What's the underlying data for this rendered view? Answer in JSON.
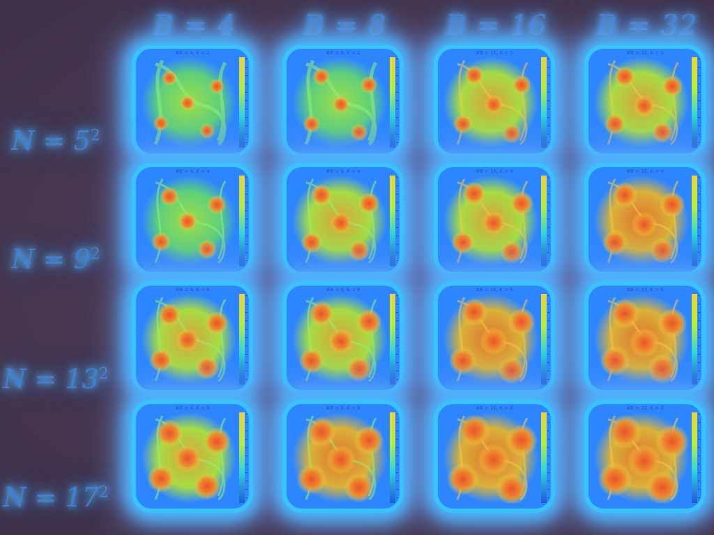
{
  "columns": [
    {
      "label": "B = 4"
    },
    {
      "label": "B = 8"
    },
    {
      "label": "B = 16"
    },
    {
      "label": "B = 32"
    }
  ],
  "rows": [
    {
      "base": "N = 5",
      "exp": "2"
    },
    {
      "base": "N = 9",
      "exp": "2"
    },
    {
      "base": "N = 13",
      "exp": "2"
    },
    {
      "base": "N = 17",
      "exp": "2"
    }
  ],
  "panels": [
    [
      "#B = 4, K = 2",
      "#B = 8, K = 2",
      "#B = 16, K = 2",
      "#B = 32, K = 2"
    ],
    [
      "#B = 4, K = 4",
      "#B = 8, K = 4",
      "#B = 16, K = 4",
      "#B = 32, K = 4"
    ],
    [
      "#B = 4, K = 6",
      "#B = 8, K = 6",
      "#B = 16, K = 6",
      "#B = 32, K = 6"
    ],
    [
      "#B = 4, K = 8",
      "#B = 8, K = 8",
      "#B = 16, K = 8",
      "#B = 32, K = 8"
    ]
  ],
  "colors": {
    "header_text": "#3f7fd8",
    "glow": "#48b8ff",
    "background": "#4a3a55",
    "heat_low": "#2a74e8",
    "heat_mid": "#8fdc3a",
    "heat_high": "#e0662a"
  }
}
